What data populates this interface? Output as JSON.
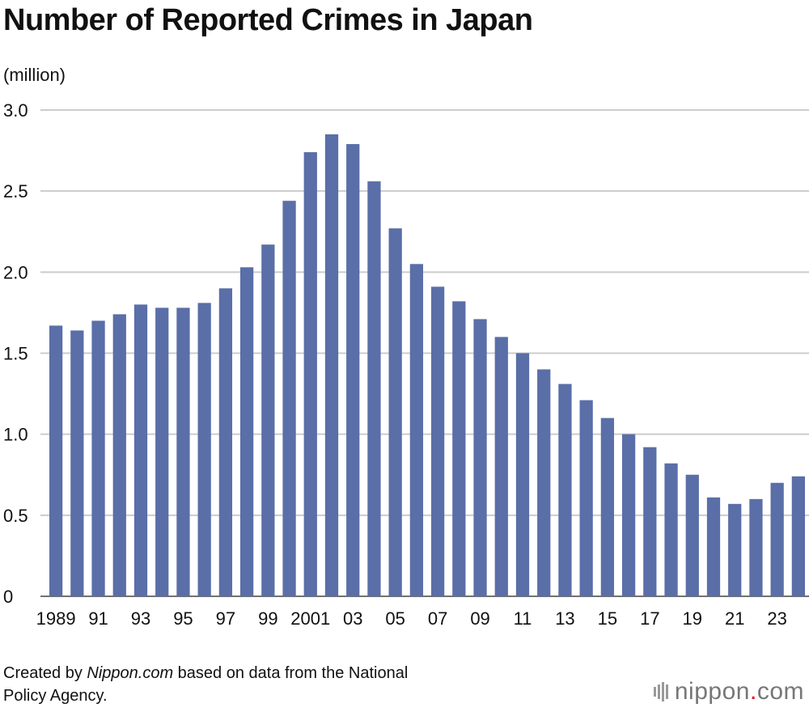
{
  "page": {
    "footer_prefix": "Created by ",
    "footer_brand": "Nippon.com",
    "footer_line1_rest": " based on data from the National",
    "footer_line2": "Policy Agency.",
    "logo_left": "nippon",
    "logo_dot": ".",
    "logo_right": "com"
  },
  "chart_data": {
    "type": "bar",
    "title": "Number of Reported Crimes in Japan",
    "ylabel": "(million)",
    "xlabel": "",
    "ylim": [
      0,
      3.0
    ],
    "yticks": [
      "0",
      "0.5",
      "1.0",
      "1.5",
      "2.0",
      "2.5",
      "3.0"
    ],
    "ytick_values": [
      0,
      0.5,
      1.0,
      1.5,
      2.0,
      2.5,
      3.0
    ],
    "grid": true,
    "bar_color": "#5a6ea8",
    "grid_color": "#cccccc",
    "categories": [
      "1989",
      "1990",
      "1991",
      "1992",
      "1993",
      "1994",
      "1995",
      "1996",
      "1997",
      "1998",
      "1999",
      "2000",
      "2001",
      "2002",
      "2003",
      "2004",
      "2005",
      "2006",
      "2007",
      "2008",
      "2009",
      "2010",
      "2011",
      "2012",
      "2013",
      "2014",
      "2015",
      "2016",
      "2017",
      "2018",
      "2019",
      "2020",
      "2021",
      "2022",
      "2023",
      "2024"
    ],
    "values": [
      1.67,
      1.64,
      1.7,
      1.74,
      1.8,
      1.78,
      1.78,
      1.81,
      1.9,
      2.03,
      2.17,
      2.44,
      2.74,
      2.85,
      2.79,
      2.56,
      2.27,
      2.05,
      1.91,
      1.82,
      1.71,
      1.6,
      1.5,
      1.4,
      1.31,
      1.21,
      1.1,
      1.0,
      0.92,
      0.82,
      0.75,
      0.61,
      0.57,
      0.6,
      0.7,
      0.74
    ],
    "xtick_labels": [
      {
        "index": 0,
        "label": "1989"
      },
      {
        "index": 2,
        "label": "91"
      },
      {
        "index": 4,
        "label": "93"
      },
      {
        "index": 6,
        "label": "95"
      },
      {
        "index": 8,
        "label": "97"
      },
      {
        "index": 10,
        "label": "99"
      },
      {
        "index": 12,
        "label": "2001"
      },
      {
        "index": 14,
        "label": "03"
      },
      {
        "index": 16,
        "label": "05"
      },
      {
        "index": 18,
        "label": "07"
      },
      {
        "index": 20,
        "label": "09"
      },
      {
        "index": 22,
        "label": "11"
      },
      {
        "index": 24,
        "label": "13"
      },
      {
        "index": 26,
        "label": "15"
      },
      {
        "index": 28,
        "label": "17"
      },
      {
        "index": 30,
        "label": "19"
      },
      {
        "index": 32,
        "label": "21"
      },
      {
        "index": 34,
        "label": "23"
      }
    ]
  }
}
